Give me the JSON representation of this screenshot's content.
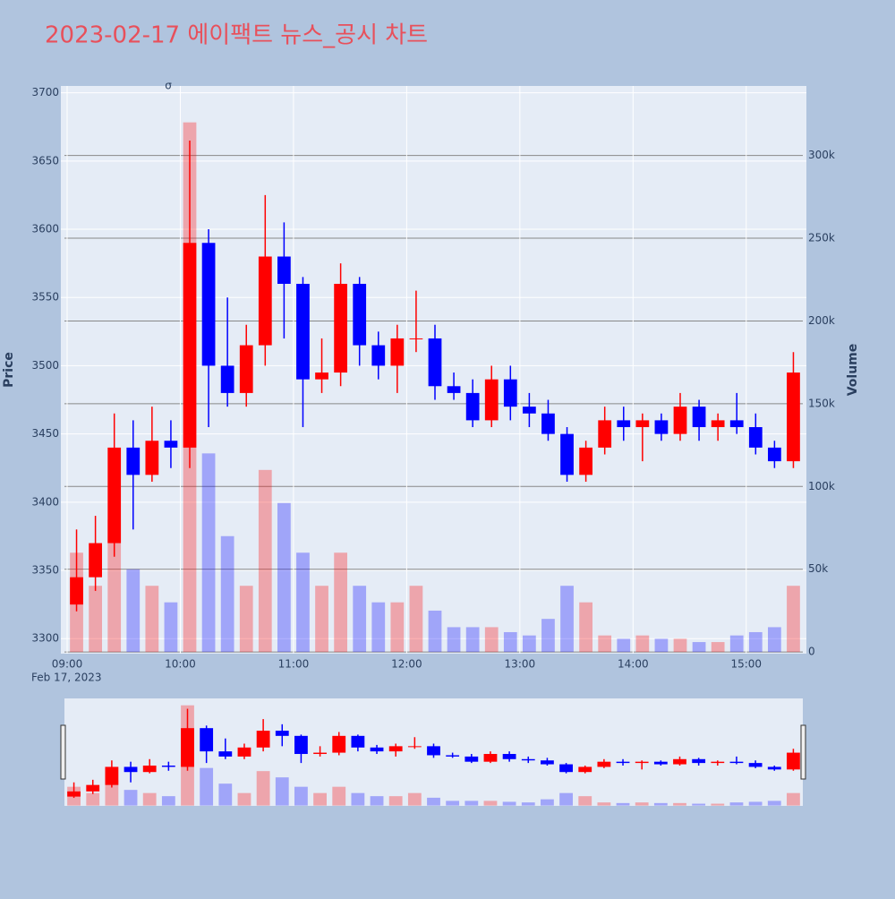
{
  "chart_data": {
    "type": "candlestick",
    "title": "2023-02-17 에이팩트 뉴스_공시 차트",
    "x_date_label": "Feb 17, 2023",
    "y_label": "Price",
    "y2_label": "Volume",
    "annotation": "σ",
    "increasing_color": "#ff0000",
    "decreasing_color": "#0000ff",
    "x": [
      "09:00",
      "09:10",
      "09:20",
      "09:30",
      "09:40",
      "09:50",
      "10:00",
      "10:10",
      "10:20",
      "10:30",
      "10:40",
      "10:50",
      "11:00",
      "11:10",
      "11:20",
      "11:30",
      "11:40",
      "11:50",
      "12:00",
      "12:10",
      "12:20",
      "12:30",
      "12:40",
      "12:50",
      "13:00",
      "13:10",
      "13:20",
      "13:30",
      "13:40",
      "13:50",
      "14:00",
      "14:10",
      "14:20",
      "14:30",
      "14:40",
      "14:50",
      "15:00",
      "15:10",
      "15:20"
    ],
    "open": [
      3325,
      3345,
      3370,
      3440,
      3420,
      3445,
      3440,
      3590,
      3500,
      3480,
      3515,
      3580,
      3560,
      3490,
      3495,
      3560,
      3515,
      3500,
      3520,
      3520,
      3485,
      3480,
      3460,
      3490,
      3470,
      3465,
      3450,
      3420,
      3440,
      3460,
      3455,
      3460,
      3450,
      3470,
      3455,
      3460,
      3455,
      3440,
      3430
    ],
    "high": [
      3380,
      3390,
      3465,
      3460,
      3470,
      3460,
      3665,
      3600,
      3550,
      3530,
      3625,
      3605,
      3565,
      3520,
      3575,
      3565,
      3525,
      3530,
      3555,
      3530,
      3495,
      3490,
      3500,
      3500,
      3480,
      3475,
      3455,
      3445,
      3470,
      3470,
      3465,
      3465,
      3480,
      3475,
      3465,
      3480,
      3465,
      3445,
      3510
    ],
    "low": [
      3320,
      3335,
      3360,
      3380,
      3415,
      3425,
      3425,
      3455,
      3470,
      3470,
      3500,
      3520,
      3455,
      3480,
      3485,
      3500,
      3490,
      3480,
      3510,
      3475,
      3475,
      3455,
      3455,
      3460,
      3455,
      3445,
      3415,
      3415,
      3435,
      3445,
      3430,
      3445,
      3445,
      3445,
      3445,
      3450,
      3435,
      3425,
      3425
    ],
    "close": [
      3345,
      3370,
      3440,
      3420,
      3445,
      3440,
      3590,
      3500,
      3480,
      3515,
      3580,
      3560,
      3490,
      3495,
      3560,
      3515,
      3500,
      3520,
      3520,
      3485,
      3480,
      3460,
      3490,
      3470,
      3465,
      3450,
      3420,
      3440,
      3460,
      3455,
      3460,
      3450,
      3470,
      3455,
      3460,
      3455,
      3440,
      3430,
      3495
    ],
    "volume": [
      60000,
      40000,
      80000,
      50000,
      40000,
      30000,
      320000,
      120000,
      70000,
      40000,
      110000,
      90000,
      60000,
      40000,
      60000,
      40000,
      30000,
      30000,
      40000,
      25000,
      15000,
      15000,
      15000,
      12000,
      10000,
      20000,
      40000,
      30000,
      10000,
      8000,
      10000,
      8000,
      8000,
      6000,
      6000,
      10000,
      12000,
      15000,
      40000
    ],
    "xlim": [
      "09:00",
      "15:30"
    ],
    "xticks": [
      "09:00",
      "10:00",
      "11:00",
      "12:00",
      "13:00",
      "14:00",
      "15:00"
    ],
    "ylim": [
      3289,
      3705
    ],
    "yticks": [
      3300,
      3350,
      3400,
      3450,
      3500,
      3550,
      3600,
      3650,
      3700
    ],
    "y2lim": [
      -1000,
      342000
    ],
    "y2ticks": [
      0,
      {
        "value": 50000,
        "label": "50k"
      },
      {
        "value": 100000,
        "label": "100k"
      },
      {
        "value": 150000,
        "label": "150k"
      },
      {
        "value": 200000,
        "label": "200k"
      },
      {
        "value": 250000,
        "label": "250k"
      },
      {
        "value": 300000,
        "label": "300k"
      }
    ],
    "grid": true
  }
}
